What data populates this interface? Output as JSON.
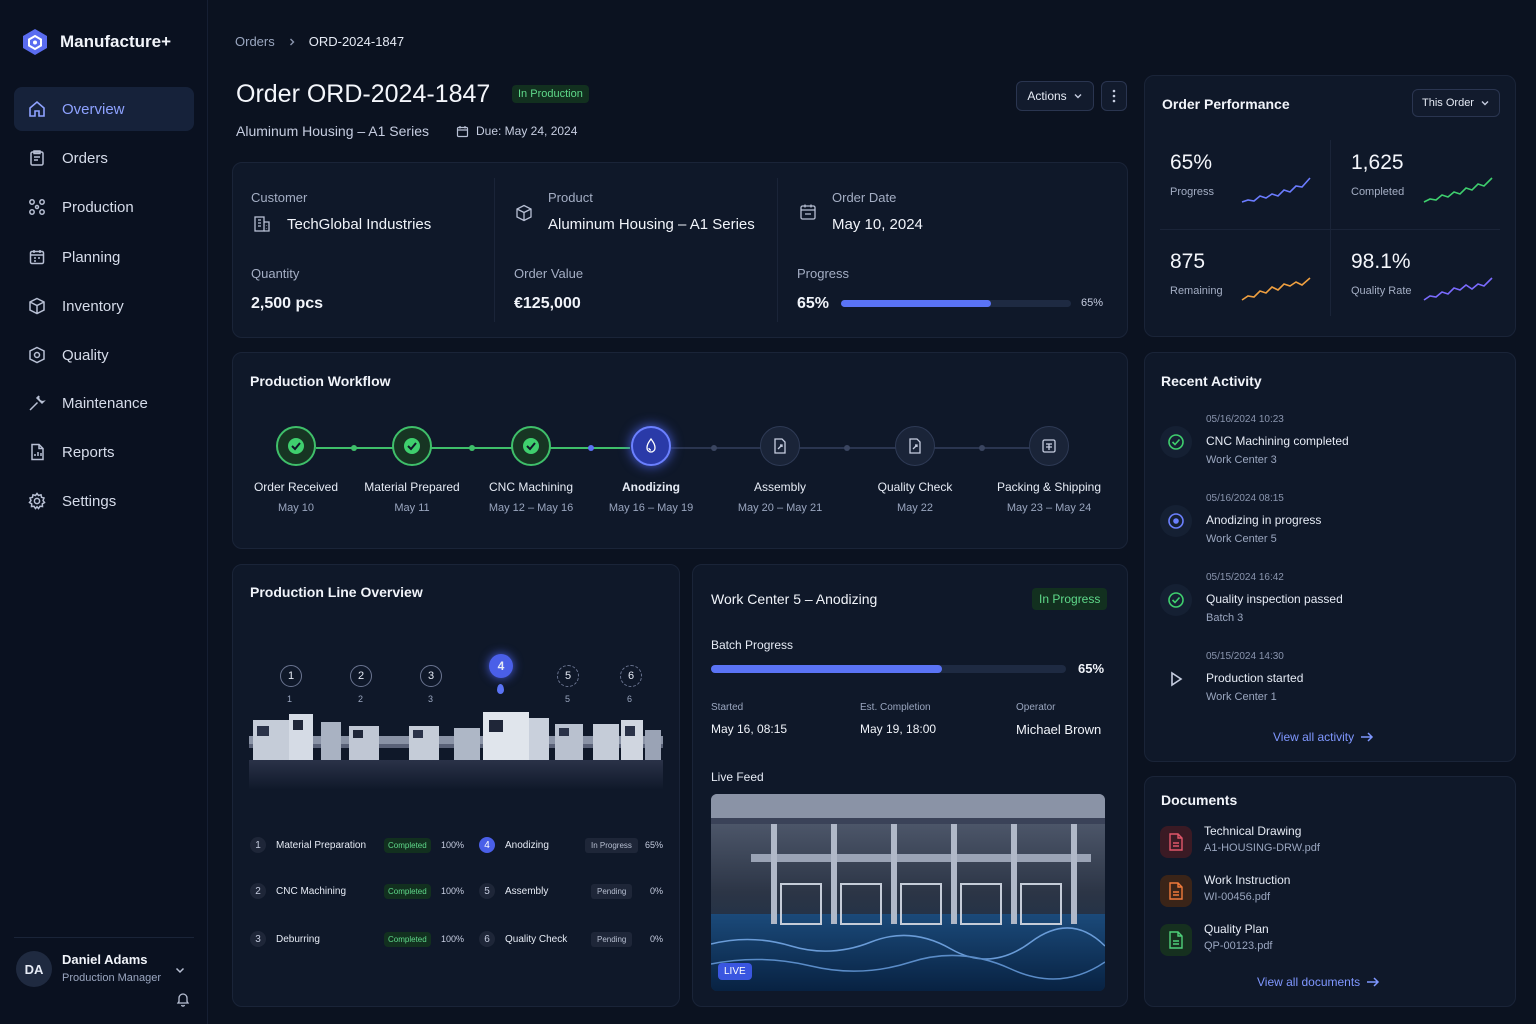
{
  "app": {
    "name": "Manufacture+"
  },
  "sidebar": {
    "items": [
      {
        "label": "Overview",
        "icon": "home-icon",
        "active": true
      },
      {
        "label": "Orders",
        "icon": "clipboard-icon"
      },
      {
        "label": "Production",
        "icon": "network-icon"
      },
      {
        "label": "Planning",
        "icon": "calendar-icon"
      },
      {
        "label": "Inventory",
        "icon": "box-icon"
      },
      {
        "label": "Quality",
        "icon": "shield-icon"
      },
      {
        "label": "Maintenance",
        "icon": "wrench-icon"
      },
      {
        "label": "Reports",
        "icon": "report-icon"
      },
      {
        "label": "Settings",
        "icon": "gear-icon"
      }
    ],
    "user": {
      "initials": "DA",
      "name": "Daniel Adams",
      "role": "Production Manager"
    }
  },
  "breadcrumb": {
    "parent": "Orders",
    "current": "ORD-2024-1847"
  },
  "header": {
    "title": "Order ORD-2024-1847",
    "status": "In Production",
    "subtitle": "Aluminum Housing – A1 Series",
    "due": "Due: May 24, 2024",
    "actions_label": "Actions"
  },
  "summary": {
    "customer_label": "Customer",
    "customer": "TechGlobal Industries",
    "product_label": "Product",
    "product": "Aluminum Housing – A1 Series",
    "order_date_label": "Order Date",
    "order_date": "May 10, 2024",
    "quantity_label": "Quantity",
    "quantity": "2,500 pcs",
    "order_value_label": "Order Value",
    "order_value": "€125,000",
    "progress_label": "Progress",
    "progress_text": "65%",
    "progress_small": "65%",
    "progress_fraction": 0.65
  },
  "performance": {
    "title": "Order Performance",
    "filter": "This Order",
    "metrics": [
      {
        "value": "65%",
        "label": "Progress",
        "color": "#6b7cff"
      },
      {
        "value": "1,625",
        "label": "Completed",
        "color": "#3fcf6e"
      },
      {
        "value": "875",
        "label": "Remaining",
        "color": "#f0a040"
      },
      {
        "value": "98.1%",
        "label": "Quality Rate",
        "color": "#7b6bff"
      }
    ]
  },
  "workflow": {
    "title": "Production Workflow",
    "steps": [
      {
        "name": "Order Received",
        "date": "May 10",
        "state": "done"
      },
      {
        "name": "Material Prepared",
        "date": "May 11",
        "state": "done"
      },
      {
        "name": "CNC Machining",
        "date": "May 12 – May 16",
        "state": "done"
      },
      {
        "name": "Anodizing",
        "date": "May 16 – May 19",
        "state": "active"
      },
      {
        "name": "Assembly",
        "date": "May 20 – May 21",
        "state": "pending"
      },
      {
        "name": "Quality Check",
        "date": "May 22",
        "state": "pending"
      },
      {
        "name": "Packing & Shipping",
        "date": "May 23 – May 24",
        "state": "pending"
      }
    ]
  },
  "line_overview": {
    "title": "Production Line Overview",
    "markers": [
      "1",
      "2",
      "3",
      "4",
      "5",
      "6"
    ],
    "marker_sublabels": [
      "1",
      "2",
      "3",
      "",
      "5",
      "6"
    ],
    "rows": [
      {
        "num": "1",
        "name": "Material Preparation",
        "status": "Completed",
        "pct": "100%"
      },
      {
        "num": "2",
        "name": "CNC Machining",
        "status": "Completed",
        "pct": "100%"
      },
      {
        "num": "3",
        "name": "Deburring",
        "status": "Completed",
        "pct": "100%"
      },
      {
        "num": "4",
        "name": "Anodizing",
        "status": "In Progress",
        "pct": "65%"
      },
      {
        "num": "5",
        "name": "Assembly",
        "status": "Pending",
        "pct": "0%"
      },
      {
        "num": "6",
        "name": "Quality Check",
        "status": "Pending",
        "pct": "0%"
      }
    ]
  },
  "work_center": {
    "title": "Work Center 5 – Anodizing",
    "status": "In Progress",
    "batch_label": "Batch Progress",
    "batch_pct": "65%",
    "batch_fraction": 0.65,
    "started_label": "Started",
    "started": "May 16, 08:15",
    "est_label": "Est. Completion",
    "est": "May 19, 18:00",
    "operator_label": "Operator",
    "operator": "Michael Brown",
    "feed_label": "Live Feed",
    "live": "LIVE"
  },
  "activity": {
    "title": "Recent Activity",
    "items": [
      {
        "time": "05/16/2024 10:23",
        "title": "CNC Machining completed",
        "sub": "Work Center 3",
        "icon": "check-circle-icon"
      },
      {
        "time": "05/16/2024 08:15",
        "title": "Anodizing in progress",
        "sub": "Work Center 5",
        "icon": "progress-circle-icon"
      },
      {
        "time": "05/15/2024 16:42",
        "title": "Quality inspection passed",
        "sub": "Batch 3",
        "icon": "check-circle-icon"
      },
      {
        "time": "05/15/2024 14:30",
        "title": "Production started",
        "sub": "Work Center 1",
        "icon": "play-icon"
      }
    ],
    "view_all": "View all activity"
  },
  "documents": {
    "title": "Documents",
    "items": [
      {
        "name": "Technical Drawing",
        "file": "A1-HOUSING-DRW.pdf",
        "color": "#e0566a"
      },
      {
        "name": "Work Instruction",
        "file": "WI-00456.pdf",
        "color": "#f07a3a"
      },
      {
        "name": "Quality Plan",
        "file": "QP-00123.pdf",
        "color": "#4fcf7a"
      }
    ],
    "view_all": "View all documents"
  }
}
